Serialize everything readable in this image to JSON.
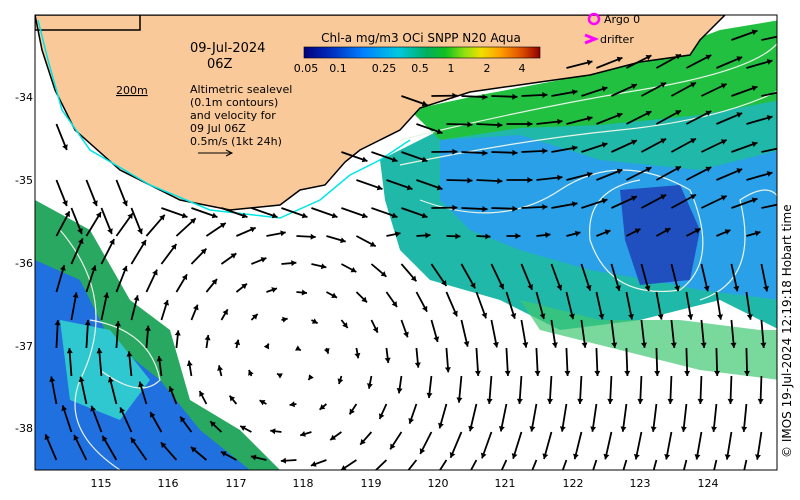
{
  "map": {
    "date": "09-Jul-2024",
    "time": "06Z",
    "colorbar": {
      "title": "Chl-a mg/m3 OCi SNPP N20 Aqua",
      "ticks": [
        "0.05",
        "0.1",
        "0.25",
        "0.5",
        "1",
        "2",
        "4"
      ],
      "colors": [
        "#00007f",
        "#0030c0",
        "#0080ff",
        "#00c8e0",
        "#00b060",
        "#10c020",
        "#60d010",
        "#e0e000",
        "#ffa000",
        "#e05000",
        "#900000"
      ]
    },
    "depth_label": "200m",
    "legend_text": [
      "Altimetric sealevel",
      "(0.1m contours)",
      "and velocity for",
      "09 Jul 06Z",
      "0.5m/s (1kt 24h)"
    ],
    "markers": {
      "argo": "Argo 0",
      "drifter": "drifter",
      "marker_color": "#ff00ff"
    },
    "lon_ticks": [
      "115",
      "116",
      "117",
      "118",
      "119",
      "120",
      "121",
      "122",
      "123",
      "124"
    ],
    "lat_ticks": [
      "-34",
      "-35",
      "-36",
      "-37",
      "-38"
    ],
    "credit": "© IMOS 19-Jul-2024 12:19:18 Hobart time",
    "colors": {
      "land": "#f9c99a",
      "coast": "#000000",
      "shelf": "#00e5e5",
      "contour": "#e8f4e8"
    }
  }
}
